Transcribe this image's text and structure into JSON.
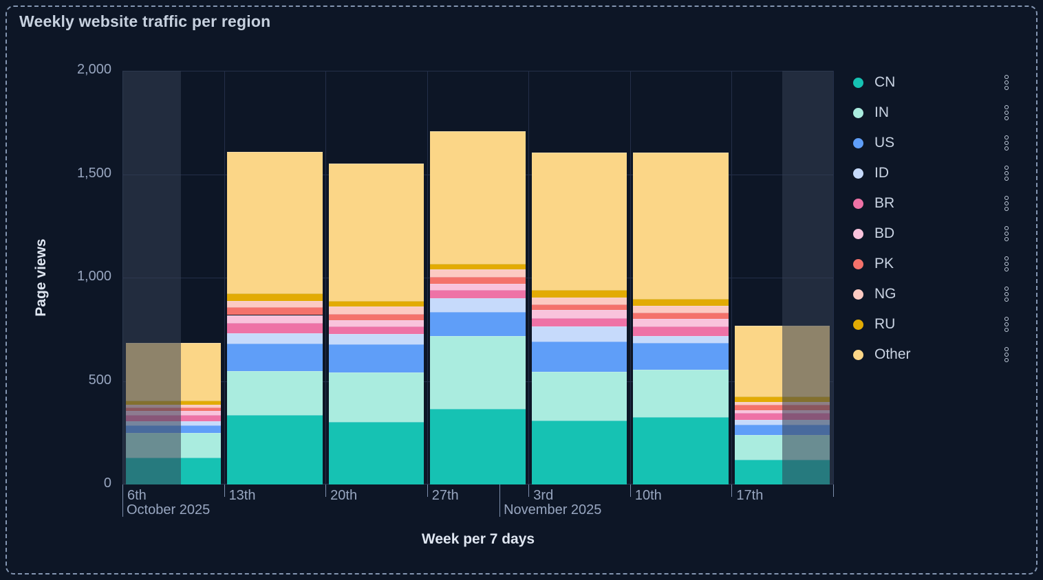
{
  "title": "Weekly website traffic per region",
  "axes": {
    "y_label": "Page views",
    "x_label": "Week per 7 days",
    "y_tick_labels": [
      "0",
      "500",
      "1,000",
      "1,500",
      "2,000"
    ]
  },
  "legend": {
    "menu_icon": "kebab-menu-icon",
    "items": [
      "CN",
      "IN",
      "US",
      "ID",
      "BR",
      "BD",
      "PK",
      "NG",
      "RU",
      "Other"
    ]
  },
  "chart_data": {
    "type": "bar",
    "stacked": true,
    "title": "Weekly website traffic per region",
    "xlabel": "Week per 7 days",
    "ylabel": "Page views",
    "ylim": [
      0,
      2000
    ],
    "y_tick_values": [
      0,
      500,
      1000,
      1500,
      2000
    ],
    "categories": [
      "6th",
      "13th",
      "20th",
      "27th",
      "3rd",
      "10th",
      "17th"
    ],
    "month_rows": [
      {
        "label": "October 2025",
        "column": 0,
        "day_offset": 0
      },
      {
        "label": "November 2025",
        "column": 3,
        "day_offset": 5
      }
    ],
    "series": [
      {
        "name": "CN",
        "color": "#16c2b3",
        "values": [
          130,
          335,
          304,
          365,
          310,
          325,
          120
        ]
      },
      {
        "name": "IN",
        "color": "#aaecdf",
        "values": [
          120,
          212,
          238,
          352,
          236,
          229,
          120
        ]
      },
      {
        "name": "US",
        "color": "#5f9ef8",
        "values": [
          37,
          135,
          136,
          116,
          146,
          130,
          49
        ]
      },
      {
        "name": "ID",
        "color": "#c6dafb",
        "values": [
          20,
          48,
          50,
          66,
          72,
          33,
          25
        ]
      },
      {
        "name": "BR",
        "color": "#ee72a6",
        "values": [
          27,
          50,
          35,
          41,
          39,
          47,
          33
        ]
      },
      {
        "name": "BD",
        "color": "#f9c3dc",
        "values": [
          22,
          39,
          31,
          31,
          42,
          36,
          13
        ]
      },
      {
        "name": "PK",
        "color": "#f4726b",
        "values": [
          17,
          38,
          31,
          31,
          27,
          31,
          26
        ]
      },
      {
        "name": "NG",
        "color": "#fccac2",
        "values": [
          13,
          31,
          35,
          37,
          31,
          33,
          13
        ]
      },
      {
        "name": "RU",
        "color": "#e2ab04",
        "values": [
          20,
          35,
          28,
          26,
          38,
          33,
          26
        ]
      },
      {
        "name": "Other",
        "color": "#fbd687",
        "values": [
          280,
          684,
          664,
          644,
          664,
          708,
          342
        ]
      }
    ],
    "totals": [
      686,
      1607,
      1552,
      1709,
      1605,
      1605,
      767
    ],
    "dimmed_edge_regions": [
      "left-half-of-first-week",
      "right-half-of-last-week"
    ]
  }
}
